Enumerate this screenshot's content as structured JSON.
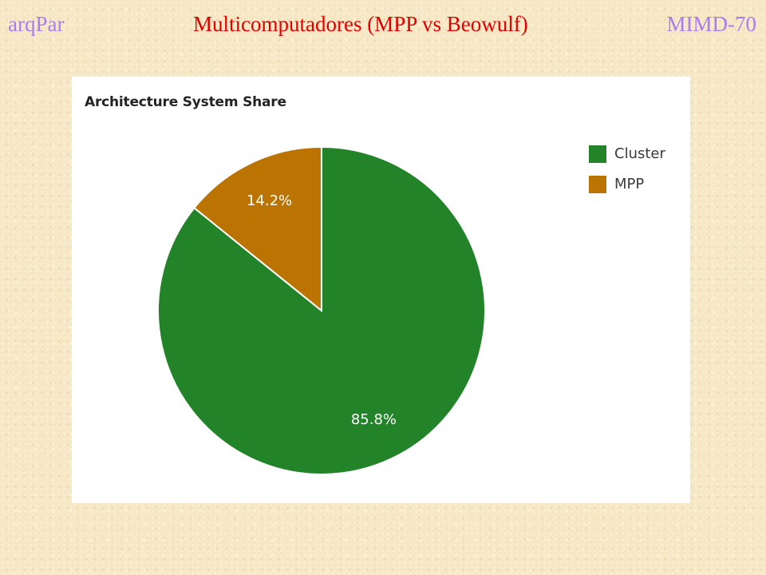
{
  "header": {
    "left": "arqPar",
    "center": "Multicomputadores (MPP vs Beowulf)",
    "right": "MIMD-70"
  },
  "chart_data": {
    "type": "pie",
    "title": "Architecture System Share",
    "slices": [
      {
        "name": "Cluster",
        "value": 85.8,
        "label": "85.8%",
        "color": "#228329"
      },
      {
        "name": "MPP",
        "value": 14.2,
        "label": "14.2%",
        "color": "#bb7402"
      }
    ],
    "start_angle": "12 o'clock",
    "direction": "clockwise",
    "legend": {
      "placement": "right"
    }
  }
}
